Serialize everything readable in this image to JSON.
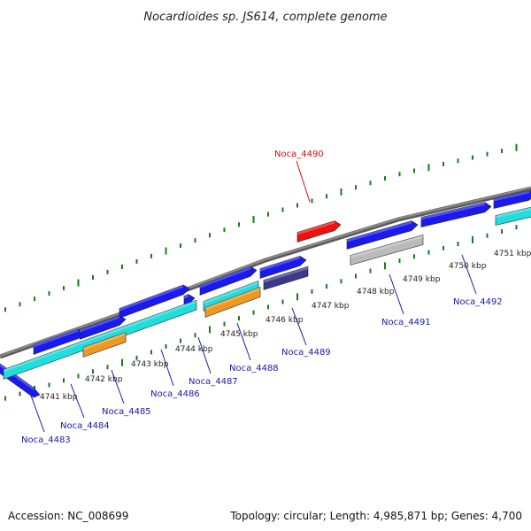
{
  "title": "Nocardioides sp. JS614, complete genome",
  "footer": {
    "accession": "Accession: NC_008699",
    "topology": "Topology: circular; Length: 4,985,871 bp; Genes: 4,700"
  },
  "colors": {
    "backbone": "#8c8c8c",
    "tick": "#1a7a1a",
    "cds_blue": "#1a1aee",
    "cds_cyan": "#22dddd",
    "cds_orange": "#ee9922",
    "cds_red": "#ee1111",
    "cds_navy": "#3a3a8c",
    "cds_grey": "#bbbbbb",
    "label_blue": "#1a1aaa",
    "label_red": "#cc1111"
  },
  "kbp_labels": [
    "4741 kbp",
    "4742 kbp",
    "4743 kbp",
    "4744 kbp",
    "4745 kbp",
    "4746 kbp",
    "4747 kbp",
    "4748 kbp",
    "4749 kbp",
    "4750 kbp",
    "4751 kbp"
  ],
  "gene_labels": [
    {
      "name": "Noca_4483",
      "color": "label_blue"
    },
    {
      "name": "Noca_4484",
      "color": "label_blue"
    },
    {
      "name": "Noca_4485",
      "color": "label_blue"
    },
    {
      "name": "Noca_4486",
      "color": "label_blue"
    },
    {
      "name": "Noca_4487",
      "color": "label_blue"
    },
    {
      "name": "Noca_4488",
      "color": "label_blue"
    },
    {
      "name": "Noca_4489",
      "color": "label_blue"
    },
    {
      "name": "Noca_4490",
      "color": "label_red"
    },
    {
      "name": "Noca_4491",
      "color": "label_blue"
    },
    {
      "name": "Noca_4492",
      "color": "label_blue"
    }
  ],
  "features": [
    {
      "name": "feature-blue",
      "color": "cds_blue"
    },
    {
      "name": "feature-blue",
      "color": "cds_blue"
    },
    {
      "name": "feature-blue",
      "color": "cds_blue"
    },
    {
      "name": "feature-blue",
      "color": "cds_blue"
    },
    {
      "name": "feature-blue",
      "color": "cds_blue"
    },
    {
      "name": "feature-blue",
      "color": "cds_blue"
    },
    {
      "name": "feature-blue",
      "color": "cds_blue"
    },
    {
      "name": "feature-blue",
      "color": "cds_blue"
    },
    {
      "name": "feature-blue",
      "color": "cds_blue"
    },
    {
      "name": "feature-blue",
      "color": "cds_blue"
    },
    {
      "name": "feature-cyan",
      "color": "cds_cyan"
    },
    {
      "name": "feature-cyan",
      "color": "cds_cyan"
    },
    {
      "name": "feature-cyan",
      "color": "cds_cyan"
    },
    {
      "name": "feature-orange",
      "color": "cds_orange"
    },
    {
      "name": "feature-orange",
      "color": "cds_orange"
    },
    {
      "name": "feature-navy",
      "color": "cds_navy"
    },
    {
      "name": "feature-grey",
      "color": "cds_grey"
    },
    {
      "name": "feature-red",
      "color": "cds_red"
    }
  ]
}
